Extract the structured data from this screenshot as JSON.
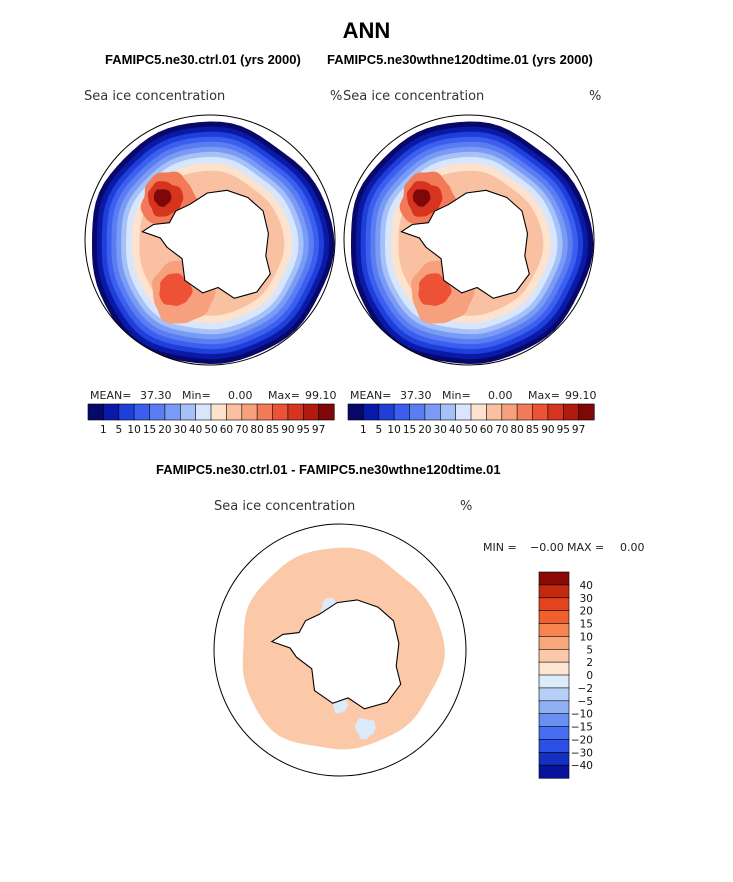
{
  "page_title": "ANN",
  "chart_data": [
    {
      "type": "heatmap",
      "projection": "south-polar-stereographic",
      "title": "FAMIPC5.ne30.ctrl.01 (yrs 2000)",
      "variable": "Sea ice concentration",
      "units": "%",
      "stats": {
        "mean_label": "MEAN=",
        "mean": "37.30",
        "min_label": "Min=",
        "min": "0.00",
        "max_label": "Max=",
        "max": "99.10"
      },
      "colorbar": {
        "levels": [
          "1",
          "5",
          "10",
          "15",
          "20",
          "30",
          "40",
          "50",
          "60",
          "70",
          "80",
          "85",
          "90",
          "95",
          "97"
        ],
        "colors": [
          "#08086b",
          "#0a1aa8",
          "#1f3fd8",
          "#3c5ff0",
          "#5a7ef2",
          "#7a9bf5",
          "#a6c1f8",
          "#d7e6fc",
          "#fde3cd",
          "#f9c0a1",
          "#f6a07e",
          "#f37a58",
          "#ee5236",
          "#d6341f",
          "#b21a0f",
          "#7e0707"
        ]
      }
    },
    {
      "type": "heatmap",
      "projection": "south-polar-stereographic",
      "title": "FAMIPC5.ne30wthne120dtime.01 (yrs 2000)",
      "variable": "Sea ice concentration",
      "units": "%",
      "stats": {
        "mean_label": "MEAN=",
        "mean": "37.30",
        "min_label": "Min=",
        "min": "0.00",
        "max_label": "Max=",
        "max": "99.10"
      },
      "colorbar": {
        "levels": [
          "1",
          "5",
          "10",
          "15",
          "20",
          "30",
          "40",
          "50",
          "60",
          "70",
          "80",
          "85",
          "90",
          "95",
          "97"
        ],
        "colors": [
          "#08086b",
          "#0a1aa8",
          "#1f3fd8",
          "#3c5ff0",
          "#5a7ef2",
          "#7a9bf5",
          "#a6c1f8",
          "#d7e6fc",
          "#fde3cd",
          "#f9c0a1",
          "#f6a07e",
          "#f37a58",
          "#ee5236",
          "#d6341f",
          "#b21a0f",
          "#7e0707"
        ]
      }
    },
    {
      "type": "heatmap",
      "projection": "south-polar-stereographic",
      "title": "FAMIPC5.ne30.ctrl.01 - FAMIPC5.ne30wthne120dtime.01",
      "variable": "Sea ice concentration",
      "units": "%",
      "stats": {
        "min_label": "MIN =",
        "min": "−0.00",
        "max_label": "MAX =",
        "max": "0.00"
      },
      "colorbar": {
        "levels": [
          "40",
          "30",
          "20",
          "15",
          "10",
          "5",
          "2",
          "0",
          "−2",
          "−5",
          "−10",
          "−15",
          "−20",
          "−30",
          "−40"
        ],
        "colors": [
          "#8a0a06",
          "#c32a10",
          "#e2441d",
          "#f0602d",
          "#f58450",
          "#f9a77a",
          "#fbc8a8",
          "#fde6d2",
          "#dcebfa",
          "#b7cff6",
          "#8fb0f2",
          "#6890f0",
          "#456ff0",
          "#2c4fe6",
          "#1430c2",
          "#07139a"
        ]
      }
    }
  ]
}
